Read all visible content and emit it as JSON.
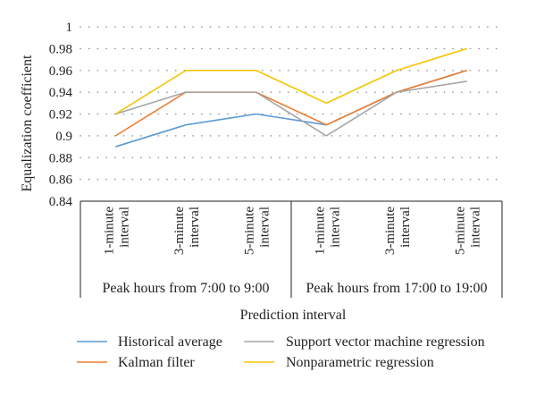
{
  "chart_data": {
    "type": "line",
    "xlabel": "Prediction interval",
    "ylabel": "Equalization coefficient",
    "ylim": [
      0.84,
      1
    ],
    "yticks": [
      "0.84",
      "0.86",
      "0.88",
      "0.9",
      "0.92",
      "0.94",
      "0.96",
      "0.98",
      "1"
    ],
    "grid": true,
    "legend_position": "bottom",
    "groups": [
      {
        "label": "Peak hours from 7:00 to 9:00",
        "categories": [
          [
            "1-minute",
            "interval"
          ],
          [
            "3-minute",
            "interval"
          ],
          [
            "5-minute",
            "interval"
          ]
        ]
      },
      {
        "label": "Peak hours from 17:00 to 19:00",
        "categories": [
          [
            "1-minute",
            "interval"
          ],
          [
            "3-minute",
            "interval"
          ],
          [
            "5-minute",
            "interval"
          ]
        ]
      }
    ],
    "series": [
      {
        "name": "Historical average",
        "color": "#5b9bd5",
        "values": [
          0.89,
          0.91,
          0.92,
          0.91,
          0.94,
          0.96
        ]
      },
      {
        "name": "Kalman filter",
        "color": "#ed7d31",
        "values": [
          0.9,
          0.94,
          0.94,
          0.91,
          0.94,
          0.96
        ]
      },
      {
        "name": "Support vector machine regression",
        "color": "#a5a5a5",
        "values": [
          0.92,
          0.94,
          0.94,
          0.9,
          0.94,
          0.95
        ]
      },
      {
        "name": "Nonparametric regression",
        "color": "#f5c400",
        "values": [
          0.92,
          0.96,
          0.96,
          0.93,
          0.96,
          0.98
        ]
      }
    ]
  }
}
